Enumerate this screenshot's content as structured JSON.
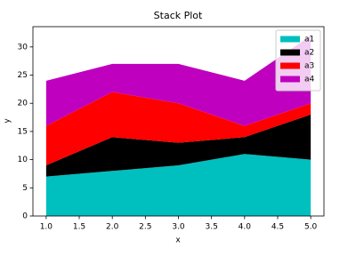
{
  "chart_data": {
    "type": "stackplot",
    "title": "Stack Plot",
    "x_label": "x",
    "y_label": "y",
    "x": [
      1,
      2,
      3,
      4,
      5
    ],
    "series": [
      {
        "name": "a1",
        "color": "#00bfbf",
        "values": [
          7,
          8,
          9,
          11,
          10
        ]
      },
      {
        "name": "a2",
        "color": "#000000",
        "values": [
          2,
          6,
          4,
          3,
          8
        ]
      },
      {
        "name": "a3",
        "color": "#ff0000",
        "values": [
          7,
          8,
          7,
          2,
          2
        ]
      },
      {
        "name": "a4",
        "color": "#bf00bf",
        "values": [
          8,
          5,
          7,
          8,
          12
        ]
      }
    ],
    "xlim": [
      0.8,
      5.2
    ],
    "xticks": [
      {
        "value": 1,
        "label": "1.0"
      },
      {
        "value": 1.5,
        "label": "1.5"
      },
      {
        "value": 2,
        "label": "2.0"
      },
      {
        "value": 2.5,
        "label": "2.5"
      },
      {
        "value": 3,
        "label": "3.0"
      },
      {
        "value": 3.5,
        "label": "3.5"
      },
      {
        "value": 4,
        "label": "4.0"
      },
      {
        "value": 4.5,
        "label": "4.5"
      },
      {
        "value": 5,
        "label": "5.0"
      }
    ],
    "ylim": [
      0,
      33.6
    ],
    "yticks": [
      0,
      5,
      10,
      15,
      20,
      25,
      30
    ],
    "legend": "upper right"
  }
}
